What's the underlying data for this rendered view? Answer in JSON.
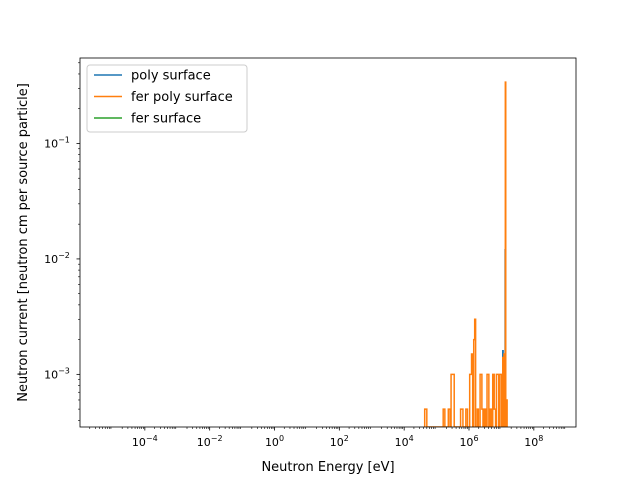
{
  "chart_data": {
    "type": "line",
    "title": "",
    "xlabel": "Neutron Energy [eV]",
    "ylabel": "Neutron current [neutron cm per source particle]",
    "xscale": "log",
    "yscale": "log",
    "xlim": [
      1e-06,
      2000000000.0
    ],
    "ylim": [
      0.00035,
      0.55
    ],
    "grid": false,
    "legend": "top-left",
    "x_ticks": [
      {
        "value": 0.0001,
        "base": "10",
        "exp": "−4"
      },
      {
        "value": 0.01,
        "base": "10",
        "exp": "−2"
      },
      {
        "value": 1,
        "base": "10",
        "exp": "0"
      },
      {
        "value": 100.0,
        "base": "10",
        "exp": "2"
      },
      {
        "value": 10000.0,
        "base": "10",
        "exp": "4"
      },
      {
        "value": 1000000.0,
        "base": "10",
        "exp": "6"
      },
      {
        "value": 100000000.0,
        "base": "10",
        "exp": "8"
      }
    ],
    "y_ticks": [
      {
        "value": 0.001,
        "base": "10",
        "exp": "−3"
      },
      {
        "value": 0.01,
        "base": "10",
        "exp": "−2"
      },
      {
        "value": 0.1,
        "base": "10",
        "exp": "−1"
      }
    ],
    "series": [
      {
        "name": "poly surface",
        "color": "#1f77b4",
        "points": [
          [
            11000000.0,
            0.00035
          ],
          [
            11000000.0,
            0.0016
          ],
          [
            11300000.0,
            0.0016
          ],
          [
            11300000.0,
            0.00035
          ],
          [
            13000000.0,
            0.00035
          ],
          [
            13000000.0,
            0.012
          ],
          [
            13500000.0,
            0.012
          ],
          [
            13500000.0,
            0.00035
          ]
        ]
      },
      {
        "name": "fer poly surface",
        "color": "#ff7f0e",
        "points": [
          [
            43000.0,
            0.00035
          ],
          [
            43000.0,
            0.0005
          ],
          [
            50000.0,
            0.0005
          ],
          [
            50000.0,
            0.00035
          ],
          [
            160000.0,
            0.00035
          ],
          [
            160000.0,
            0.0005
          ],
          [
            180000.0,
            0.0005
          ],
          [
            180000.0,
            0.00035
          ],
          [
            230000.0,
            0.00035
          ],
          [
            230000.0,
            0.0005
          ],
          [
            260000.0,
            0.0005
          ],
          [
            260000.0,
            0.00035
          ],
          [
            280000.0,
            0.00035
          ],
          [
            280000.0,
            0.001
          ],
          [
            350000.0,
            0.001
          ],
          [
            350000.0,
            0.00035
          ],
          [
            550000.0,
            0.00035
          ],
          [
            550000.0,
            0.0005
          ],
          [
            650000.0,
            0.0005
          ],
          [
            650000.0,
            0.00035
          ],
          [
            800000.0,
            0.00035
          ],
          [
            800000.0,
            0.0005
          ],
          [
            900000.0,
            0.0005
          ],
          [
            900000.0,
            0.00035
          ],
          [
            1050000.0,
            0.00035
          ],
          [
            1050000.0,
            0.001
          ],
          [
            1200000.0,
            0.001
          ],
          [
            1200000.0,
            0.0015
          ],
          [
            1300000.0,
            0.0015
          ],
          [
            1300000.0,
            0.00035
          ],
          [
            1400000.0,
            0.00035
          ],
          [
            1400000.0,
            0.002
          ],
          [
            1500000.0,
            0.002
          ],
          [
            1500000.0,
            0.003
          ],
          [
            1600000.0,
            0.003
          ],
          [
            1600000.0,
            0.00035
          ],
          [
            1800000.0,
            0.00035
          ],
          [
            1800000.0,
            0.0005
          ],
          [
            1950000.0,
            0.0005
          ],
          [
            1950000.0,
            0.00035
          ],
          [
            2200000.0,
            0.00035
          ],
          [
            2200000.0,
            0.001
          ],
          [
            2500000.0,
            0.001
          ],
          [
            2500000.0,
            0.0005
          ],
          [
            2700000.0,
            0.0005
          ],
          [
            2700000.0,
            0.00035
          ],
          [
            3000000.0,
            0.00035
          ],
          [
            3000000.0,
            0.0005
          ],
          [
            3300000.0,
            0.0005
          ],
          [
            3300000.0,
            0.00035
          ],
          [
            3600000.0,
            0.00035
          ],
          [
            3600000.0,
            0.001
          ],
          [
            4100000.0,
            0.001
          ],
          [
            4100000.0,
            0.00035
          ],
          [
            4500000.0,
            0.00035
          ],
          [
            4500000.0,
            0.0005
          ],
          [
            5000000.0,
            0.0005
          ],
          [
            5000000.0,
            0.00035
          ],
          [
            5400000.0,
            0.00035
          ],
          [
            5400000.0,
            0.001
          ],
          [
            6000000.0,
            0.001
          ],
          [
            6000000.0,
            0.0005
          ],
          [
            6600000.0,
            0.0005
          ],
          [
            6600000.0,
            0.00035
          ],
          [
            7000000.0,
            0.00035
          ],
          [
            7000000.0,
            0.001
          ],
          [
            8200000.0,
            0.001
          ],
          [
            8200000.0,
            0.00035
          ],
          [
            9000000.0,
            0.00035
          ],
          [
            9000000.0,
            0.001
          ],
          [
            10200000.0,
            0.001
          ],
          [
            10200000.0,
            0.00035
          ],
          [
            11000000.0,
            0.00035
          ],
          [
            11000000.0,
            0.0014
          ],
          [
            11400000.0,
            0.0014
          ],
          [
            11400000.0,
            0.00035
          ],
          [
            12000000.0,
            0.00035
          ],
          [
            12000000.0,
            0.0015
          ],
          [
            12500000.0,
            0.0015
          ],
          [
            12500000.0,
            0.00035
          ],
          [
            13200000.0,
            0.00035
          ],
          [
            13200000.0,
            0.34
          ],
          [
            13600000.0,
            0.34
          ],
          [
            13600000.0,
            0.00035
          ],
          [
            14200000.0,
            0.00035
          ],
          [
            14200000.0,
            0.0006
          ],
          [
            15000000.0,
            0.0006
          ],
          [
            15000000.0,
            0.00035
          ]
        ]
      },
      {
        "name": "fer surface",
        "color": "#2ca02c",
        "points": []
      }
    ]
  }
}
